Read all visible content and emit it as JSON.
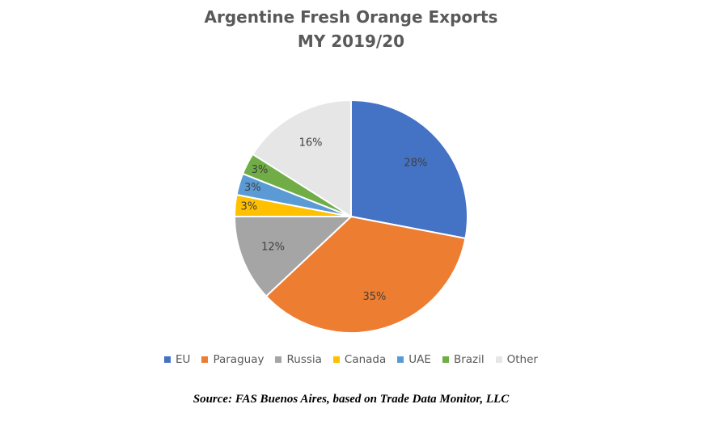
{
  "chart_data": {
    "type": "pie",
    "title": "Argentine Fresh Orange Exports",
    "subtitle": "MY 2019/20",
    "categories": [
      "EU",
      "Paraguay",
      "Russia",
      "Canada",
      "UAE",
      "Brazil",
      "Other"
    ],
    "values": [
      28,
      35,
      12,
      3,
      3,
      3,
      16
    ],
    "labels": [
      "28%",
      "35%",
      "12%",
      "3%",
      "3%",
      "3%",
      "16%"
    ],
    "colors": [
      "#4472C4",
      "#ED7D31",
      "#A5A5A5",
      "#FFC000",
      "#5B9BD5",
      "#70AD47",
      "#E7E6E6"
    ],
    "legend_position": "bottom",
    "start_angle_deg": 0,
    "direction": "clockwise"
  },
  "source_note": "Source: FAS Buenos Aires, based on Trade Data Monitor, LLC"
}
